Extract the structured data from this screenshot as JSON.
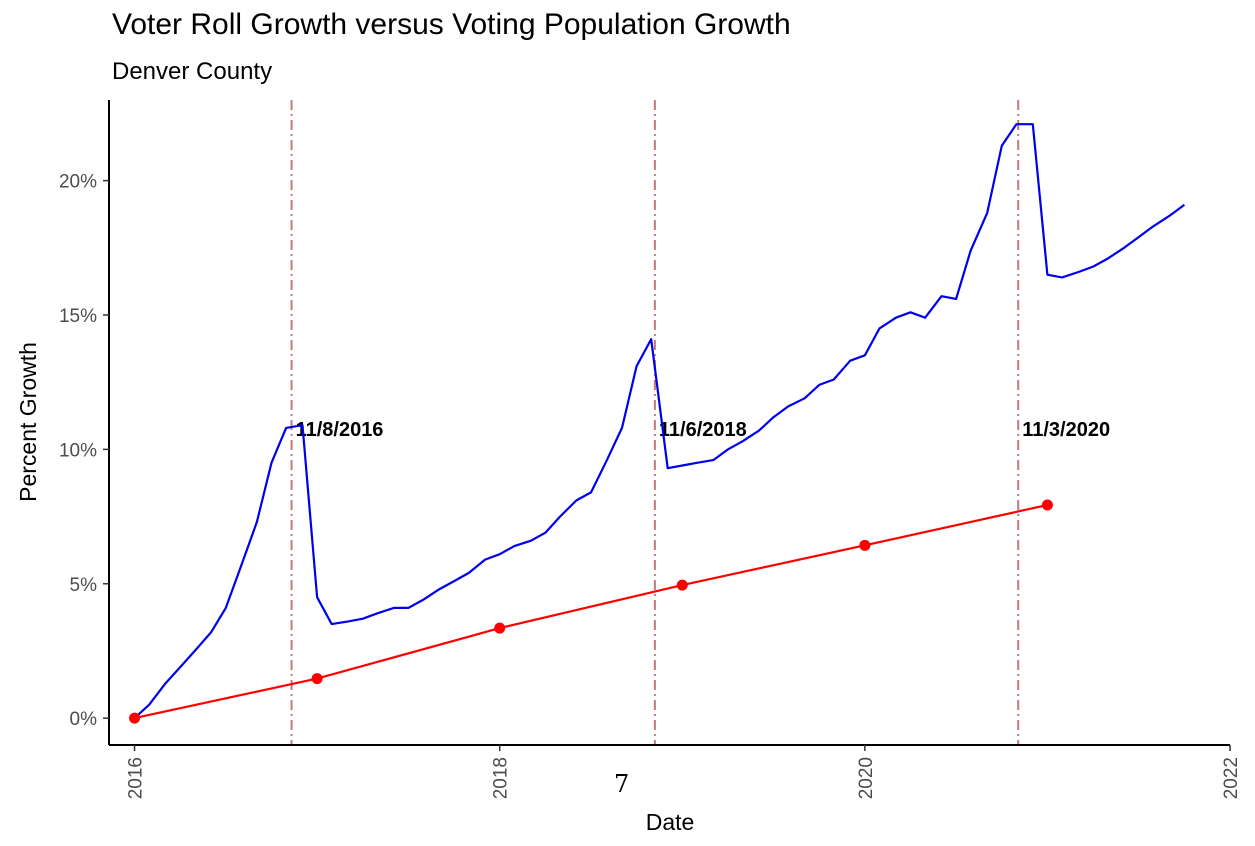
{
  "chart_data": {
    "type": "line",
    "title": "Voter Roll Growth versus Voting Population Growth",
    "subtitle": "Denver County",
    "xlabel": "Date",
    "ylabel": "Percent Growth",
    "xlim": [
      2015.86,
      2022.0
    ],
    "ylim": [
      -0.01,
      0.23
    ],
    "x_ticks": [
      {
        "value": 2016,
        "label": "2016"
      },
      {
        "value": 2018,
        "label": "2018"
      },
      {
        "value": 2020,
        "label": "2020"
      },
      {
        "value": 2022,
        "label": "2022"
      }
    ],
    "y_ticks": [
      {
        "value": 0,
        "label": "0%"
      },
      {
        "value": 0.05,
        "label": "5%"
      },
      {
        "value": 0.1,
        "label": "10%"
      },
      {
        "value": 0.15,
        "label": "15%"
      },
      {
        "value": 0.2,
        "label": "20%"
      }
    ],
    "grid": false,
    "legend": "none",
    "vlines": [
      {
        "x": 2016.86,
        "label": "11/8/2016"
      },
      {
        "x": 2018.85,
        "label": "11/6/2018"
      },
      {
        "x": 2020.84,
        "label": "11/3/2020"
      }
    ],
    "vline_color": "#c47a7a",
    "series": [
      {
        "color": "#0000ee",
        "style": "line",
        "x": [
          2016.0,
          2016.08,
          2016.17,
          2016.25,
          2016.33,
          2016.42,
          2016.5,
          2016.58,
          2016.67,
          2016.75,
          2016.83,
          2016.92,
          2017.0,
          2017.08,
          2017.17,
          2017.25,
          2017.33,
          2017.42,
          2017.5,
          2017.58,
          2017.67,
          2017.75,
          2017.83,
          2017.92,
          2018.0,
          2018.08,
          2018.17,
          2018.25,
          2018.33,
          2018.42,
          2018.5,
          2018.58,
          2018.67,
          2018.75,
          2018.83,
          2018.92,
          2019.0,
          2019.08,
          2019.17,
          2019.25,
          2019.33,
          2019.42,
          2019.5,
          2019.58,
          2019.67,
          2019.75,
          2019.83,
          2019.92,
          2020.0,
          2020.08,
          2020.17,
          2020.25,
          2020.33,
          2020.42,
          2020.5,
          2020.58,
          2020.67,
          2020.75,
          2020.83,
          2020.92,
          2021.0,
          2021.08,
          2021.17,
          2021.25,
          2021.33,
          2021.42,
          2021.5,
          2021.58,
          2021.67,
          2021.75
        ],
        "y": [
          0.0,
          0.005,
          0.013,
          0.019,
          0.025,
          0.032,
          0.041,
          0.056,
          0.073,
          0.095,
          0.108,
          0.109,
          0.045,
          0.035,
          0.036,
          0.037,
          0.039,
          0.041,
          0.041,
          0.044,
          0.048,
          0.051,
          0.054,
          0.059,
          0.061,
          0.064,
          0.066,
          0.069,
          0.075,
          0.081,
          0.084,
          0.095,
          0.108,
          0.131,
          0.141,
          0.093,
          0.094,
          0.095,
          0.096,
          0.1,
          0.103,
          0.107,
          0.112,
          0.116,
          0.119,
          0.124,
          0.126,
          0.133,
          0.135,
          0.145,
          0.149,
          0.151,
          0.149,
          0.157,
          0.156,
          0.174,
          0.188,
          0.213,
          0.221,
          0.221,
          0.165,
          0.164,
          0.166,
          0.168,
          0.171,
          0.175,
          0.179,
          0.183,
          0.187,
          0.191
        ]
      },
      {
        "color": "#ff0000",
        "style": "line+points",
        "x": [
          2016.0,
          2017.0,
          2018.0,
          2019.0,
          2020.0,
          2021.0
        ],
        "y": [
          0.0,
          0.0147,
          0.0335,
          0.0495,
          0.0643,
          0.0793
        ]
      }
    ]
  },
  "stray_text": "7"
}
